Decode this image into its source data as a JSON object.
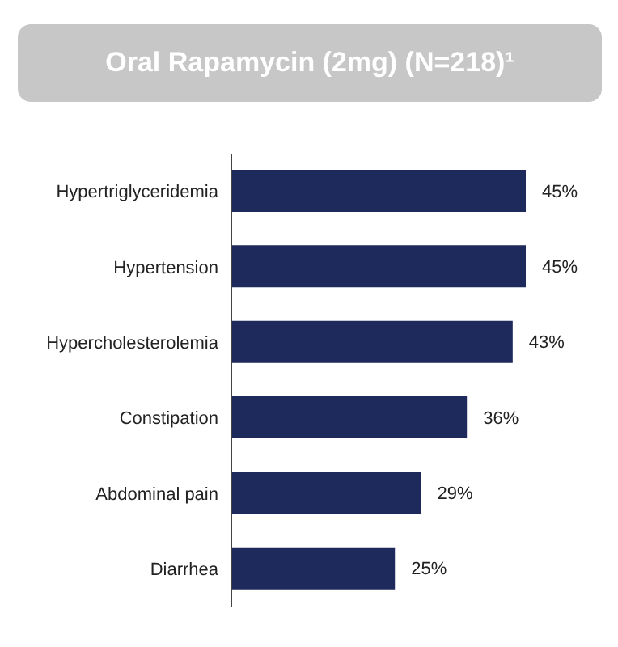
{
  "chart_data": {
    "type": "bar",
    "orientation": "horizontal",
    "title": "Oral Rapamycin (2mg) (N=218)¹",
    "categories": [
      "Hypertriglyceridemia",
      "Hypertension",
      "Hypercholesterolemia",
      "Constipation",
      "Abdominal pain",
      "Diarrhea"
    ],
    "values": [
      45,
      45,
      43,
      36,
      29,
      25
    ],
    "value_labels": [
      "45%",
      "45%",
      "43%",
      "36%",
      "29%",
      "25%"
    ],
    "color": "#1f2a5c",
    "tick_labels": "y"
  }
}
